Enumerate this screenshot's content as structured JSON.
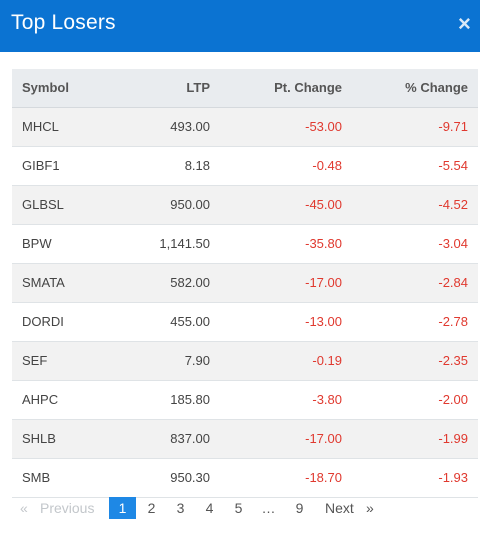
{
  "header": {
    "title": "Top Losers",
    "close_label": "×"
  },
  "table": {
    "columns": {
      "symbol": "Symbol",
      "ltp": "LTP",
      "pt_change": "Pt. Change",
      "pct_change": "% Change"
    },
    "rows": [
      {
        "symbol": "MHCL",
        "ltp": "493.00",
        "pt_change": "-53.00",
        "pct_change": "-9.71"
      },
      {
        "symbol": "GIBF1",
        "ltp": "8.18",
        "pt_change": "-0.48",
        "pct_change": "-5.54"
      },
      {
        "symbol": "GLBSL",
        "ltp": "950.00",
        "pt_change": "-45.00",
        "pct_change": "-4.52"
      },
      {
        "symbol": "BPW",
        "ltp": "1,141.50",
        "pt_change": "-35.80",
        "pct_change": "-3.04"
      },
      {
        "symbol": "SMATA",
        "ltp": "582.00",
        "pt_change": "-17.00",
        "pct_change": "-2.84"
      },
      {
        "symbol": "DORDI",
        "ltp": "455.00",
        "pt_change": "-13.00",
        "pct_change": "-2.78"
      },
      {
        "symbol": "SEF",
        "ltp": "7.90",
        "pt_change": "-0.19",
        "pct_change": "-2.35"
      },
      {
        "symbol": "AHPC",
        "ltp": "185.80",
        "pt_change": "-3.80",
        "pct_change": "-2.00"
      },
      {
        "symbol": "SHLB",
        "ltp": "837.00",
        "pt_change": "-17.00",
        "pct_change": "-1.99"
      },
      {
        "symbol": "SMB",
        "ltp": "950.30",
        "pt_change": "-18.70",
        "pct_change": "-1.93"
      }
    ]
  },
  "pagination": {
    "prev_arrow": "«",
    "prev_label": "Previous",
    "pages": [
      "1",
      "2",
      "3",
      "4",
      "5",
      "…",
      "9"
    ],
    "active_page": "1",
    "next_label": "Next",
    "next_arrow": "»"
  },
  "colors": {
    "header_bg": "#0b73d2",
    "negative": "#e0392f",
    "active_page": "#1e88e5"
  }
}
